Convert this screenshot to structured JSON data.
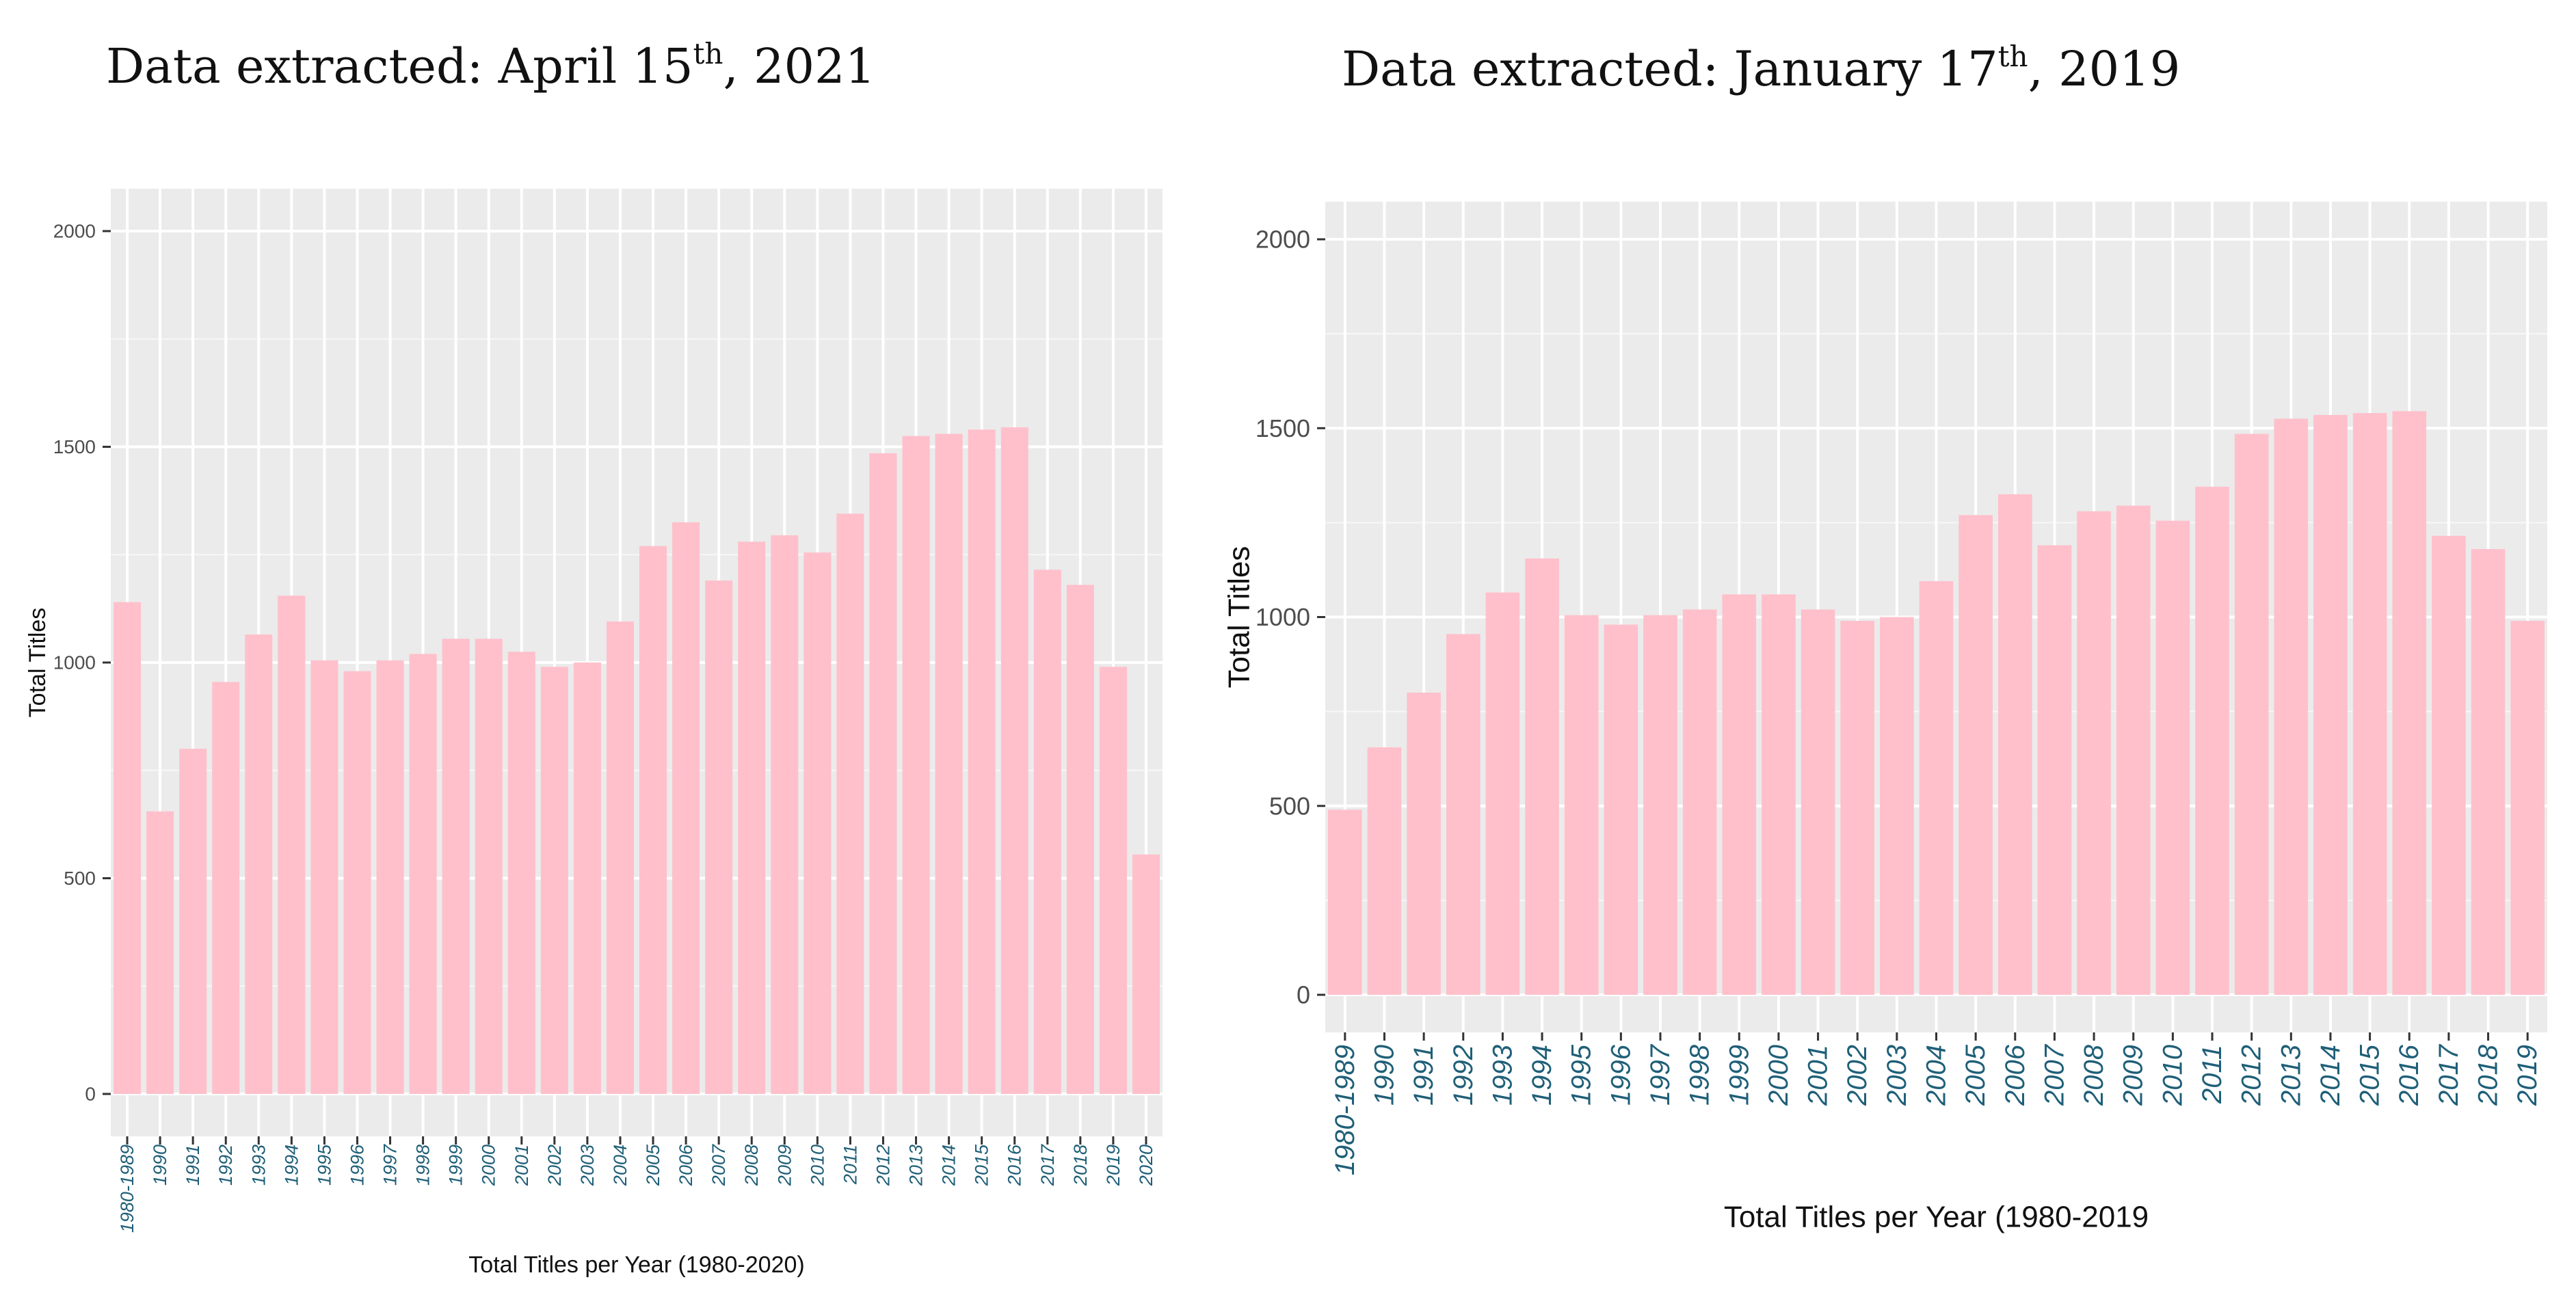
{
  "headings": [
    {
      "text": "Data extracted: April 15",
      "sup": "th",
      "tail": ", 2021"
    },
    {
      "text": "Data extracted: January 17",
      "sup": "th",
      "tail": ", 2019"
    }
  ],
  "colors": {
    "bar": "#ffc0cb",
    "panel": "#ebebeb",
    "grid": "#ffffff",
    "x_tick_text": "#1f5f78",
    "y_tick_text": "#4d4d4d"
  },
  "chart_data": [
    {
      "type": "bar",
      "title": "",
      "xlabel": "Total Titles per Year (1980-2020)",
      "ylabel": "Total Titles",
      "ylim": [
        0,
        2000
      ],
      "yticks": [
        "0",
        "500",
        "1000",
        "1500",
        "2000"
      ],
      "grid": true,
      "legend": "none",
      "categories": [
        "1980-1989",
        "1990",
        "1991",
        "1992",
        "1993",
        "1994",
        "1995",
        "1996",
        "1997",
        "1998",
        "1999",
        "2000",
        "2001",
        "2002",
        "2003",
        "2004",
        "2005",
        "2006",
        "2007",
        "2008",
        "2009",
        "2010",
        "2011",
        "2012",
        "2013",
        "2014",
        "2015",
        "2016",
        "2017",
        "2018",
        "2019",
        "2020"
      ],
      "values": [
        1140,
        655,
        800,
        955,
        1065,
        1155,
        1005,
        980,
        1005,
        1020,
        1055,
        1055,
        1025,
        990,
        1000,
        1095,
        1270,
        1325,
        1190,
        1280,
        1295,
        1255,
        1345,
        1485,
        1525,
        1530,
        1540,
        1545,
        1215,
        1180,
        990,
        555
      ]
    },
    {
      "type": "bar",
      "title": "",
      "xlabel": "Total Titles per Year (1980-2019",
      "ylabel": "Total Titles",
      "ylim": [
        0,
        2000
      ],
      "yticks": [
        "0",
        "500",
        "1000",
        "1500",
        "2000"
      ],
      "grid": true,
      "legend": "none",
      "categories": [
        "1980-1989",
        "1990",
        "1991",
        "1992",
        "1993",
        "1994",
        "1995",
        "1996",
        "1997",
        "1998",
        "1999",
        "2000",
        "2001",
        "2002",
        "2003",
        "2004",
        "2005",
        "2006",
        "2007",
        "2008",
        "2009",
        "2010",
        "2011",
        "2012",
        "2013",
        "2014",
        "2015",
        "2016",
        "2017",
        "2018",
        "2019"
      ],
      "values": [
        490,
        655,
        800,
        955,
        1065,
        1155,
        1005,
        980,
        1005,
        1020,
        1060,
        1060,
        1020,
        990,
        1000,
        1095,
        1270,
        1325,
        1190,
        1280,
        1295,
        1255,
        1345,
        1485,
        1525,
        1535,
        1540,
        1545,
        1215,
        1180,
        990
      ]
    }
  ]
}
